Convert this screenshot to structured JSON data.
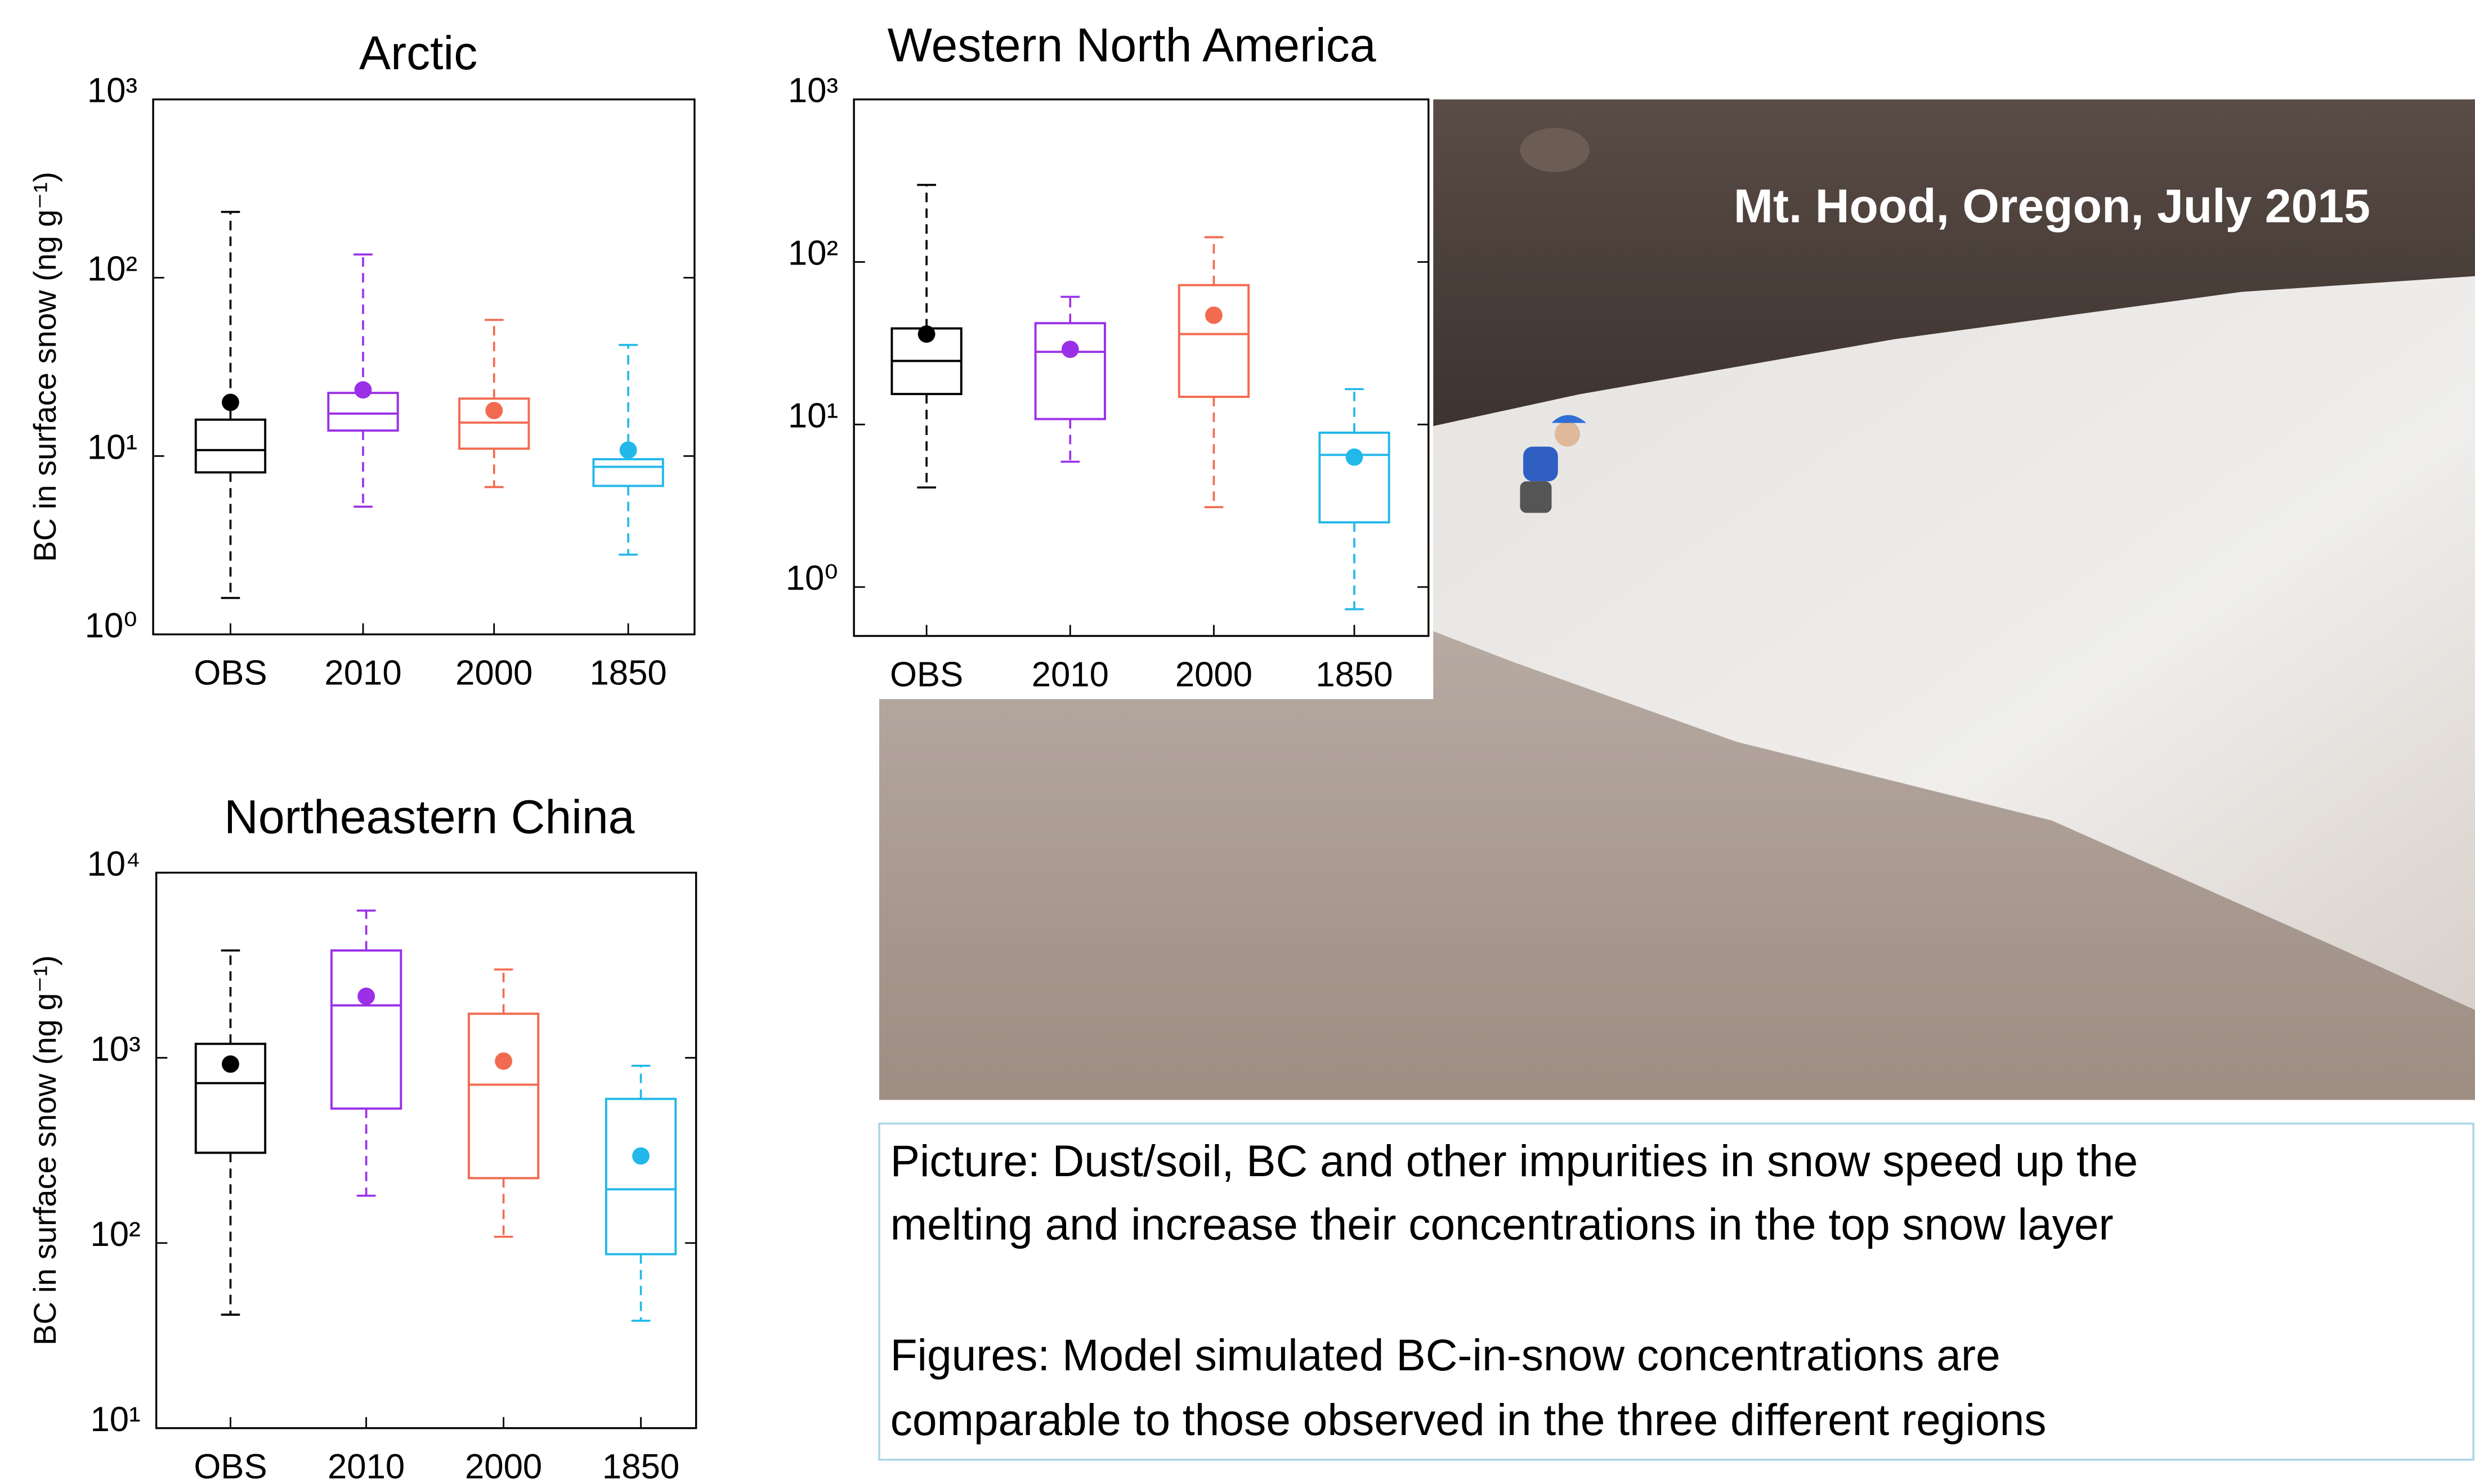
{
  "chart_data": [
    {
      "type": "box",
      "title": "Arctic",
      "ylabel": "BC in surface snow (ng g⁻¹)",
      "log_y": true,
      "categories": [
        "OBS",
        "2010",
        "2000",
        "1850"
      ],
      "colors": [
        "#000000",
        "#9b30e8",
        "#f26a4f",
        "#22b8ea"
      ],
      "low": [
        1.6,
        5.2,
        6.7,
        2.8
      ],
      "q1": [
        8.1,
        13.9,
        11,
        6.8
      ],
      "median": [
        10.8,
        17.3,
        15.4,
        8.7
      ],
      "q3": [
        16,
        22.6,
        21,
        9.6
      ],
      "high": [
        234,
        135,
        58,
        42
      ],
      "mean": [
        20,
        23.5,
        18,
        10.8
      ],
      "ylim": [
        1,
        1000
      ],
      "yticks": [
        {
          "value": 1,
          "label": "10⁰"
        },
        {
          "value": 10,
          "label": "10¹"
        },
        {
          "value": 100,
          "label": "10²"
        },
        {
          "value": 1000,
          "label": "10³"
        }
      ]
    },
    {
      "type": "box",
      "title": "Western North America",
      "log_y": true,
      "categories": [
        "OBS",
        "2010",
        "2000",
        "1850"
      ],
      "colors": [
        "#000000",
        "#9b30e8",
        "#f26a4f",
        "#22b8ea"
      ],
      "low": [
        4.1,
        5.9,
        3.1,
        0.73
      ],
      "q1": [
        15.4,
        10.8,
        14.8,
        2.5
      ],
      "median": [
        24.6,
        28,
        36,
        6.5
      ],
      "q3": [
        39,
        42,
        72,
        8.9
      ],
      "high": [
        298,
        61,
        142,
        16.5
      ],
      "mean": [
        36,
        29,
        47,
        6.3
      ],
      "ylim": [
        0.5,
        1000
      ],
      "yticks": [
        {
          "value": 1,
          "label": "10⁰"
        },
        {
          "value": 10,
          "label": "10¹"
        },
        {
          "value": 100,
          "label": "10²"
        },
        {
          "value": 1000,
          "label": "10³"
        }
      ]
    },
    {
      "type": "box",
      "title": "Northeastern China",
      "ylabel": "BC in surface snow (ng g⁻¹)",
      "log_y": true,
      "categories": [
        "OBS",
        "2010",
        "2000",
        "1850"
      ],
      "colors": [
        "#000000",
        "#9b30e8",
        "#f26a4f",
        "#22b8ea"
      ],
      "low": [
        41,
        180,
        108,
        38
      ],
      "q1": [
        307,
        532,
        224,
        87
      ],
      "median": [
        730,
        1920,
        716,
        195
      ],
      "q3": [
        1190,
        3800,
        1730,
        600
      ],
      "high": [
        3800,
        6240,
        3000,
        906
      ],
      "mean": [
        925,
        2150,
        960,
        295
      ],
      "ylim": [
        10,
        10000
      ],
      "yticks": [
        {
          "value": 10,
          "label": "10¹"
        },
        {
          "value": 100,
          "label": "10²"
        },
        {
          "value": 1000,
          "label": "10³"
        },
        {
          "value": 10000,
          "label": "10⁴"
        }
      ]
    }
  ],
  "photo": {
    "label": "Mt. Hood, Oregon, July 2015"
  },
  "caption": {
    "paragraphs": [
      [
        "Picture: Dust/soil, BC and other impurities in snow speed up the",
        "melting and increase their concentrations in the top snow layer"
      ],
      [
        "Figures: Model simulated BC-in-snow concentrations are",
        "comparable to those observed in the three different regions"
      ]
    ]
  }
}
